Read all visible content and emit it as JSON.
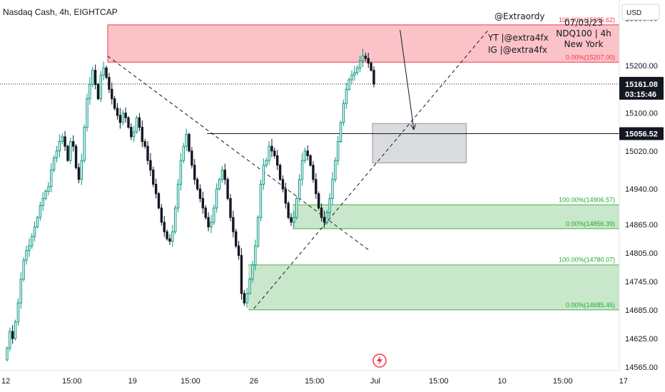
{
  "header": {
    "symbol_title": "Nasdaq Cash, 4h, EIGHTCAP",
    "currency": "USD"
  },
  "notes": {
    "handle": "@Extraordy",
    "youtube": "YT  |@extra4fx",
    "instagram": "IG  |@extra4fx",
    "date": "07/03/23",
    "instrument": "NDQ100  |  4h",
    "session": "New York"
  },
  "price_tags": {
    "last_price": "15161.08",
    "countdown": "03:15:46",
    "level_price": "15056.52"
  },
  "colors": {
    "up": "#089981",
    "down": "#131722",
    "supply_zone": "#f23645",
    "demand_zone": "#4caf50",
    "target_box": "#9598a1"
  },
  "icons": {
    "replay": "lightning-icon"
  },
  "chart_data": {
    "type": "candlestick",
    "y_axis": {
      "range": [
        14565,
        15335
      ],
      "ticks": [
        {
          "label": "15300.00",
          "value": 15300
        },
        {
          "label": "15200.00",
          "value": 15200
        },
        {
          "label": "15100.00",
          "value": 15100
        },
        {
          "label": "15020.00",
          "value": 15020
        },
        {
          "label": "14940.00",
          "value": 14940
        },
        {
          "label": "14865.00",
          "value": 14865
        },
        {
          "label": "14805.00",
          "value": 14805
        },
        {
          "label": "14745.00",
          "value": 14745
        },
        {
          "label": "14685.00",
          "value": 14685
        },
        {
          "label": "14625.00",
          "value": 14625
        },
        {
          "label": "14565.00",
          "value": 14565
        }
      ]
    },
    "x_axis": {
      "bar_range": [
        0,
        222
      ],
      "ticks": [
        {
          "label": "12",
          "bar": 0
        },
        {
          "label": "15:00",
          "bar": 24
        },
        {
          "label": "19",
          "bar": 46
        },
        {
          "label": "15:00",
          "bar": 67
        },
        {
          "label": "26",
          "bar": 90
        },
        {
          "label": "15:00",
          "bar": 112
        },
        {
          "label": "Jul",
          "bar": 134
        },
        {
          "label": "15:00",
          "bar": 157
        },
        {
          "label": "10",
          "bar": 180
        },
        {
          "label": "15:00",
          "bar": 202
        },
        {
          "label": "17",
          "bar": 224
        }
      ]
    },
    "candle_closes": [
      14605,
      14640,
      14625,
      14660,
      14700,
      14750,
      14790,
      14810,
      14820,
      14840,
      14860,
      14880,
      14905,
      14920,
      14935,
      14945,
      14980,
      15005,
      15020,
      15040,
      15050,
      15030,
      15000,
      15040,
      15030,
      14985,
      14960,
      15000,
      15070,
      15130,
      15160,
      15190,
      15160,
      15130,
      15180,
      15195,
      15175,
      15150,
      15130,
      15110,
      15095,
      15080,
      15100,
      15090,
      15070,
      15050,
      15060,
      15090,
      15070,
      15040,
      15030,
      15000,
      14980,
      14950,
      14930,
      14900,
      14870,
      14850,
      14835,
      14830,
      14850,
      14900,
      14950,
      15000,
      15030,
      15055,
      15020,
      14990,
      14960,
      14940,
      14920,
      14900,
      14880,
      14860,
      14870,
      14900,
      14940,
      14960,
      14980,
      14960,
      14920,
      14880,
      14850,
      14820,
      14800,
      14720,
      14700,
      14720,
      14750,
      14780,
      14820,
      14880,
      14950,
      14990,
      15000,
      15030,
      15020,
      15010,
      14990,
      14960,
      14940,
      14910,
      14880,
      14870,
      14880,
      14920,
      14960,
      15000,
      15020,
      15010,
      14990,
      14960,
      14930,
      14900,
      14880,
      14870,
      14890,
      14920,
      14960,
      15000,
      15040,
      15080,
      15120,
      15150,
      15170,
      15180,
      15185,
      15195,
      15210,
      15220,
      15215,
      15205,
      15190,
      15161
    ],
    "zones": [
      {
        "name": "supply",
        "top": 15285.62,
        "bottom": 15207.0,
        "start_bar": 37,
        "top_label": "100.00%(15285.62)",
        "bottom_label": "0.00%(15207.00)"
      },
      {
        "name": "demand-upper",
        "top": 14906.57,
        "bottom": 14856.39,
        "start_bar": 104,
        "top_label": "100.00%(14906.57)",
        "bottom_label": "0.00%(14856.39)"
      },
      {
        "name": "demand-lower",
        "top": 14780.07,
        "bottom": 14685.45,
        "start_bar": 88,
        "top_label": "100.00%(14780.07)",
        "bottom_label": "0.00%(14685.45)"
      }
    ],
    "target_box": {
      "top": 15078,
      "bottom": 14995,
      "start_bar": 133,
      "end_bar": 167
    },
    "horizontal_line": {
      "value": 15056.52,
      "start_bar": 73
    },
    "trendlines": [
      {
        "name": "descending",
        "from": [
          37,
          15220
        ],
        "to": [
          132,
          14810
        ],
        "style": "dashed"
      },
      {
        "name": "ascending",
        "from": [
          90,
          14688
        ],
        "to": [
          175,
          15275
        ],
        "style": "dashed"
      }
    ],
    "arrow": {
      "from": [
        143,
        15275
      ],
      "to": [
        148,
        15065
      ]
    }
  }
}
